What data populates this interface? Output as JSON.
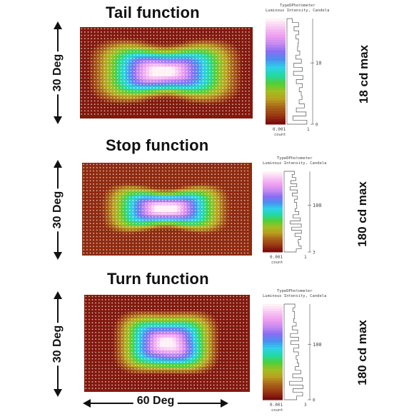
{
  "panels": [
    {
      "title": "Tail function",
      "angle_label": "30 Deg",
      "max_label": "18 cd max",
      "colorbar": {
        "title_line1": "TypeDPhotometer",
        "title_line2": "Luminous Intensity, Candela",
        "tick_mid": "10",
        "tick_low": "0",
        "footer_line1": "0.001",
        "footer_line2": "count",
        "footer_right": "1"
      }
    },
    {
      "title": "Stop function",
      "angle_label": "30 Deg",
      "max_label": "180 cd max",
      "colorbar": {
        "title_line1": "TypeDPhotometer",
        "title_line2": "Luminous Intensity, Candela",
        "tick_mid": "100",
        "tick_low": "3",
        "footer_line1": "0.001",
        "footer_line2": "count",
        "footer_right": "1"
      }
    },
    {
      "title": "Turn function",
      "angle_label": "30 Deg",
      "max_label": "180 cd max",
      "colorbar": {
        "title_line1": "TypeDPhotometer",
        "title_line2": "Luminous Intensity, Candela",
        "tick_mid": "100",
        "tick_low": "0",
        "footer_line1": "0.001",
        "footer_line2": "count",
        "footer_right": "3"
      }
    }
  ],
  "horizontal_label": "60 Deg",
  "palette": [
    "#7a0d0d",
    "#9a3b12",
    "#a8651a",
    "#b9a020",
    "#9fbf22",
    "#4fcf3a",
    "#22d9a6",
    "#2fd0e8",
    "#4a8ff0",
    "#8a6ef2",
    "#c88af0",
    "#ef9ff0",
    "#f7c6f3",
    "#fff2f7"
  ]
}
